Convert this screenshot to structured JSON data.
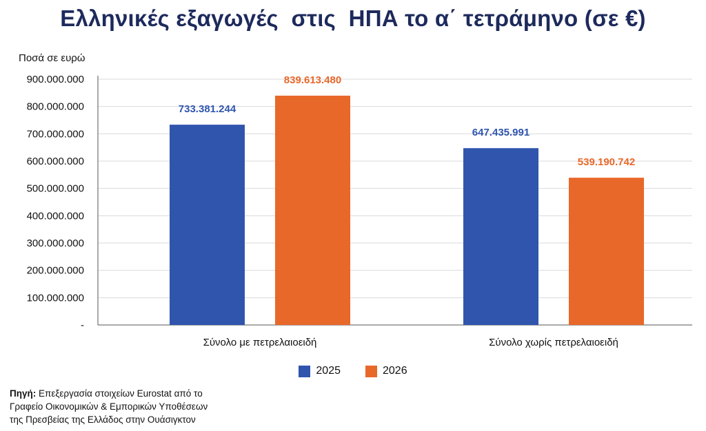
{
  "colors": {
    "s2025": "#2f55ad",
    "s2026": "#e8682a",
    "title": "#1d2a5c"
  },
  "chart_data": {
    "type": "bar",
    "title": "Ελληνικές εξαγωγές  στις  ΗΠΑ το α΄ τετράμηνο (σε €)",
    "ylabel": "Ποσά σε ευρώ",
    "categories": [
      "Σύνολο με πετρελαιοειδή",
      "Σύνολο χωρίς πετρελαιοειδή"
    ],
    "series": [
      {
        "name": "2025",
        "values": [
          733381244,
          647435991
        ],
        "labels": [
          "733.381.244",
          "647.435.991"
        ]
      },
      {
        "name": "2026",
        "values": [
          839613480,
          539190742
        ],
        "labels": [
          "839.613.480",
          "539.190.742"
        ]
      }
    ],
    "ylim": [
      0,
      900000000
    ],
    "yticks": [
      0,
      100000000,
      200000000,
      300000000,
      400000000,
      500000000,
      600000000,
      700000000,
      800000000,
      900000000
    ],
    "ytick_labels": [
      "-",
      "100.000.000",
      "200.000.000",
      "300.000.000",
      "400.000.000",
      "500.000.000",
      "600.000.000",
      "700.000.000",
      "800.000.000",
      "900.000.000"
    ],
    "grid": true,
    "legend_position": "bottom"
  },
  "source": {
    "label": "Πηγή:",
    "line1": " Επεξεργασία στοιχείων Eurostat από το",
    "line2": "Γραφείο Οικονομικών & Εμπορικών Υποθέσεων",
    "line3": "της Πρεσβείας της Ελλάδος στην Ουάσιγκτον"
  }
}
